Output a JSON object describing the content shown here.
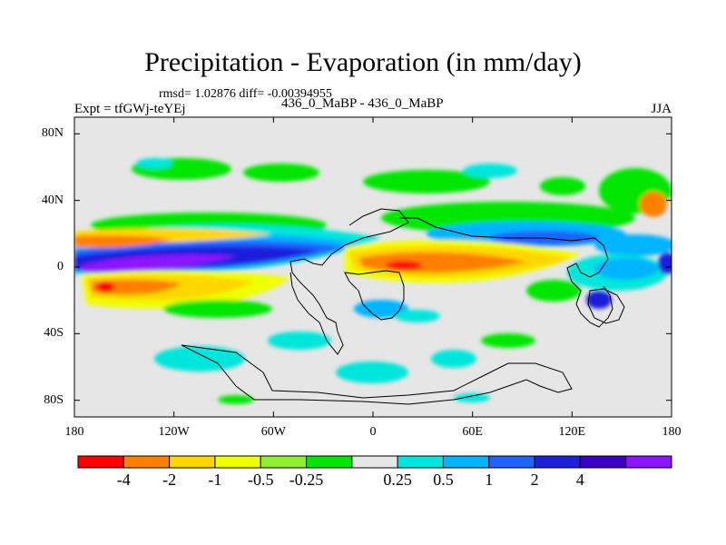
{
  "header": {
    "title": "Precipitation - Evaporation (in mm/day)",
    "stats": "rmsd= 1.02876 diff= -0.00394955",
    "subtitle": "436_0_MaBP - 436_0_MaBP",
    "expt": "Expt = tfGWj-teYEj",
    "season": "JJA"
  },
  "chart_data": {
    "type": "heatmap",
    "title": "Precipitation - Evaporation (in mm/day)",
    "x_axis": {
      "range": [
        -180,
        180
      ],
      "ticks": [
        -180,
        -120,
        -60,
        0,
        60,
        120,
        180
      ],
      "tick_labels": [
        "180",
        "120W",
        "60W",
        "0",
        "60E",
        "120E",
        "180"
      ]
    },
    "y_axis": {
      "range": [
        -90,
        90
      ],
      "ticks": [
        80,
        40,
        0,
        -40,
        -80
      ],
      "tick_labels": [
        "80N",
        "40N",
        "0",
        "40S",
        "80S"
      ]
    },
    "colorbar": {
      "colors": [
        "#ff0000",
        "#ff8000",
        "#ffd700",
        "#f0ff00",
        "#90ee30",
        "#00e600",
        "#e6e6e6",
        "#00e6dc",
        "#00b4ff",
        "#1f64ff",
        "#1e1edc",
        "#3c00c8",
        "#8c14ff"
      ],
      "labels": [
        "-4",
        "-2",
        "-1",
        "-0.5",
        "-0.25",
        "0.25",
        "0.5",
        "1",
        "2",
        "4"
      ]
    },
    "features": [
      {
        "name": "tropical-pacific-wet-band",
        "level": 2,
        "lon": [
          -180,
          -20
        ],
        "lat": [
          -5,
          25
        ]
      },
      {
        "name": "pacific-core-max",
        "level": 4,
        "lon": [
          -175,
          -100
        ],
        "lat": [
          -3,
          10
        ]
      },
      {
        "name": "north-pacific-dry-band",
        "level": -1,
        "lon": [
          -180,
          -150
        ],
        "lat": [
          10,
          20
        ]
      },
      {
        "name": "south-pacific-dry",
        "level": -1,
        "lon": [
          -170,
          -80
        ],
        "lat": [
          -25,
          -5
        ]
      },
      {
        "name": "south-pacific-dry-core",
        "level": -4,
        "lon": [
          -170,
          -155
        ],
        "lat": [
          -15,
          -8
        ]
      },
      {
        "name": "indian-ocean-dry-band",
        "level": -2,
        "lon": [
          -10,
          60
        ],
        "lat": [
          -5,
          10
        ]
      },
      {
        "name": "asian-monsoon-wet",
        "level": 1,
        "lon": [
          90,
          170
        ],
        "lat": [
          10,
          25
        ]
      },
      {
        "name": "southern-ocean-wet",
        "level": 0.5,
        "lon": [
          -160,
          60
        ],
        "lat": [
          -60,
          -40
        ]
      }
    ]
  }
}
